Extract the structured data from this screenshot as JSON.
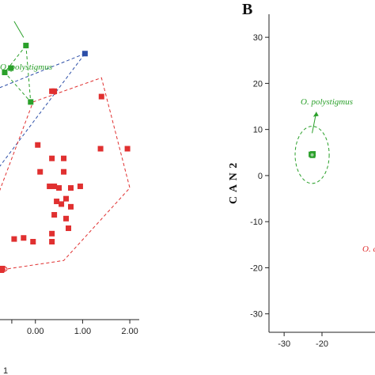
{
  "colors": {
    "species_green": "#2aa02a",
    "species_red": "#e03030",
    "species_blue": "#2d4fa8",
    "axis": "#222222"
  },
  "chart_data": [
    {
      "type": "scatter",
      "panel": "A",
      "x_ticks": [
        "0.00",
        "1.00",
        "2.00"
      ],
      "x_tick_values": [
        0,
        1,
        2
      ],
      "x_axis_label_partial": "1",
      "xlim": [
        -0.75,
        2.2
      ],
      "ylim": [
        -3.3,
        2.5
      ],
      "annotation": "O. polystigmus",
      "series": [
        {
          "name": "O. polystigmus",
          "color": "#2aa02a",
          "points": [
            [
              -0.2,
              1.8
            ],
            [
              -0.65,
              1.3
            ],
            [
              -0.52,
              1.38
            ],
            [
              -0.1,
              0.75
            ]
          ],
          "hull": [
            [
              -0.2,
              1.8
            ],
            [
              -0.65,
              1.3
            ],
            [
              -0.1,
              0.75
            ],
            [
              -0.2,
              1.8
            ]
          ]
        },
        {
          "color": "#2d4fa8",
          "points": [
            [
              1.05,
              1.65
            ]
          ],
          "hull": [
            [
              1.05,
              1.65
            ],
            [
              -0.8,
              1.0
            ],
            [
              -0.8,
              -0.5
            ],
            [
              1.05,
              1.65
            ]
          ]
        },
        {
          "color": "#e03030",
          "points": [
            [
              0.35,
              0.95
            ],
            [
              0.4,
              0.95
            ],
            [
              1.4,
              0.85
            ],
            [
              0.05,
              -0.05
            ],
            [
              1.38,
              -0.12
            ],
            [
              1.95,
              -0.12
            ],
            [
              0.6,
              -0.3
            ],
            [
              0.35,
              -0.3
            ],
            [
              0.1,
              -0.55
            ],
            [
              0.6,
              -0.55
            ],
            [
              0.95,
              -0.82
            ],
            [
              0.3,
              -0.82
            ],
            [
              0.4,
              -0.82
            ],
            [
              0.5,
              -0.85
            ],
            [
              0.75,
              -0.85
            ],
            [
              0.65,
              -1.05
            ],
            [
              0.45,
              -1.1
            ],
            [
              0.75,
              -1.2
            ],
            [
              0.55,
              -1.15
            ],
            [
              0.4,
              -1.35
            ],
            [
              0.65,
              -1.42
            ],
            [
              0.7,
              -1.6
            ],
            [
              0.35,
              -1.7
            ],
            [
              -0.45,
              -1.8
            ],
            [
              -0.25,
              -1.78
            ],
            [
              -0.05,
              -1.85
            ],
            [
              0.35,
              -1.85
            ],
            [
              -0.7,
              -2.35
            ],
            [
              -0.72,
              -2.38
            ]
          ],
          "hull": [
            [
              -0.05,
              0.75
            ],
            [
              1.4,
              1.2
            ],
            [
              2.0,
              -0.85
            ],
            [
              0.6,
              -2.2
            ],
            [
              -0.55,
              -2.35
            ],
            [
              -0.8,
              -2.4
            ],
            [
              -0.8,
              -1.0
            ],
            [
              -0.05,
              0.75
            ]
          ]
        }
      ]
    },
    {
      "type": "scatter",
      "panel": "B",
      "ylabel": "C A N  2",
      "y_ticks": [
        "30",
        "20",
        "10",
        "0",
        "-10",
        "-20",
        "-30"
      ],
      "y_tick_values": [
        30,
        20,
        10,
        0,
        -10,
        -20,
        -30
      ],
      "x_ticks": [
        "-30",
        "-20"
      ],
      "x_tick_values": [
        -30,
        -20
      ],
      "xlim": [
        -34,
        -6
      ],
      "ylim": [
        -34,
        35
      ],
      "annotation_green": "O. polystigmus",
      "annotation_red_partial": "O. a",
      "series": [
        {
          "name": "O. polystigmus",
          "color": "#2aa02a",
          "points": [
            [
              -22.8,
              4.6
            ],
            [
              -22.5,
              4.4
            ],
            [
              -22.4,
              4.7
            ]
          ],
          "ellipse": {
            "cx": -22.6,
            "cy": 4.5,
            "rx": 4.5,
            "ry": 4.0
          }
        }
      ]
    }
  ]
}
